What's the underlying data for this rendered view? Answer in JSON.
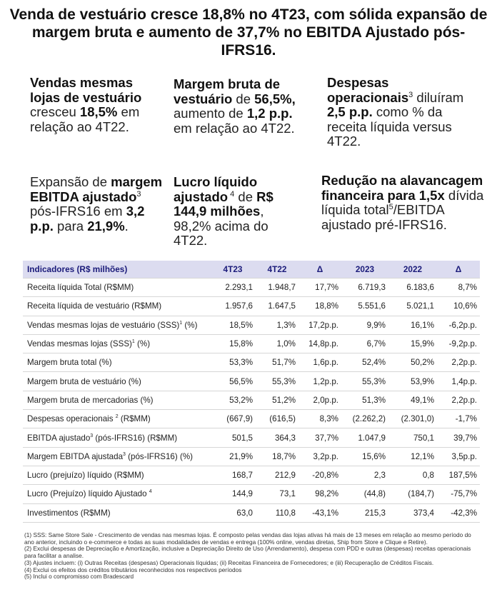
{
  "title": "Venda de vestuário cresce 18,8%  no 4T23, com sólida expansão de margem bruta e aumento de 37,7% no EBITDA Ajustado pós-IFRS16.",
  "highlights": {
    "h1": {
      "a": "Vendas mesmas lojas de vestuário",
      "b": " cresceu ",
      "c": "18,5%",
      "d": " em relação ao 4T22."
    },
    "h2": {
      "a": "Margem bruta de vestuário",
      "b": " de ",
      "c": "56,5%,",
      "d": " aumento de ",
      "e": "1,2 p.p.",
      "f": " em relação ao 4T22."
    },
    "h3": {
      "a": "Despesas operacionais",
      "sup": "3",
      "b": " diluíram ",
      "c": "2,5 p.p.",
      "d": " como % da receita líquida versus 4T22."
    },
    "h4": {
      "a": "Expansão de ",
      "b": "margem EBITDA ajustado",
      "sup": "3",
      "c": " pós-IFRS16 em ",
      "d": "3,2 p.p.",
      "e": " para ",
      "f": "21,9%",
      "g": "."
    },
    "h5": {
      "a": "Lucro líquido ajustado",
      "sup": " 4",
      "b": " de ",
      "c": "R$ 144,9 milhões",
      "d": ", 98,2% acima do 4T22."
    },
    "h6": {
      "a": "Redução na alavancagem financeira para 1,5x",
      "b": " dívida líquida total",
      "sup": "5",
      "c": "/EBITDA ajustado pré-IFRS16."
    }
  },
  "table": {
    "headers": [
      "Indicadores (R$ milhões)",
      "4T23",
      "4T22",
      "Δ",
      "2023",
      "2022",
      "Δ"
    ],
    "rows": [
      {
        "label": "Receita líquida Total (R$MM)",
        "sup": "",
        "suffix": "",
        "values": [
          "2.293,1",
          "1.948,7",
          "17,7%",
          "6.719,3",
          "6.183,6",
          "8,7%"
        ]
      },
      {
        "label": "Receita líquida de vestuário (R$MM)",
        "sup": "",
        "suffix": "",
        "values": [
          "1.957,6",
          "1.647,5",
          "18,8%",
          "5.551,6",
          "5.021,1",
          "10,6%"
        ]
      },
      {
        "label": "Vendas mesmas lojas de vestuário (SSS)",
        "sup": "1",
        "suffix": " (%)",
        "values": [
          "18,5%",
          "1,3%",
          "17,2p.p.",
          "9,9%",
          "16,1%",
          "-6,2p.p."
        ]
      },
      {
        "label": "Vendas mesmas lojas (SSS)",
        "sup": "1",
        "suffix": " (%)",
        "values": [
          "15,8%",
          "1,0%",
          "14,8p.p.",
          "6,7%",
          "15,9%",
          "-9,2p.p."
        ]
      },
      {
        "label": "Margem bruta total (%)",
        "sup": "",
        "suffix": "",
        "values": [
          "53,3%",
          "51,7%",
          "1,6p.p.",
          "52,4%",
          "50,2%",
          "2,2p.p."
        ]
      },
      {
        "label": "Margem bruta de vestuário (%)",
        "sup": "",
        "suffix": "",
        "values": [
          "56,5%",
          "55,3%",
          "1,2p.p.",
          "55,3%",
          "53,9%",
          "1,4p.p."
        ]
      },
      {
        "label": "Margem bruta de mercadorias (%)",
        "sup": "",
        "suffix": "",
        "values": [
          "53,2%",
          "51,2%",
          "2,0p.p.",
          "51,3%",
          "49,1%",
          "2,2p.p."
        ]
      },
      {
        "label": "Despesas operacionais ",
        "sup": "2",
        "suffix": " (R$MM)",
        "values": [
          "(667,9)",
          "(616,5)",
          "8,3%",
          "(2.262,2)",
          "(2.301,0)",
          "-1,7%"
        ]
      },
      {
        "label": "EBITDA ajustado",
        "sup": "3",
        "suffix": " (pós-IFRS16) (R$MM)",
        "values": [
          "501,5",
          "364,3",
          "37,7%",
          "1.047,9",
          "750,1",
          "39,7%"
        ]
      },
      {
        "label": "Margem EBITDA ajustada",
        "sup": "3",
        "suffix": "  (pós-IFRS16) (%)",
        "values": [
          "21,9%",
          "18,7%",
          "3,2p.p.",
          "15,6%",
          "12,1%",
          "3,5p.p."
        ]
      },
      {
        "label": "Lucro (prejuízo) líquido (R$MM)",
        "sup": "",
        "suffix": "",
        "values": [
          "168,7",
          "212,9",
          "-20,8%",
          "2,3",
          "0,8",
          "187,5%"
        ]
      },
      {
        "label": "Lucro (Prejuízo) líquido Ajustado ",
        "sup": "4",
        "suffix": "",
        "values": [
          "144,9",
          "73,1",
          "98,2%",
          "(44,8)",
          "(184,7)",
          "-75,7%"
        ]
      },
      {
        "label": "Investimentos (R$MM)",
        "sup": "",
        "suffix": "",
        "values": [
          "63,0",
          "110,8",
          "-43,1%",
          "215,3",
          "373,4",
          "-42,3%"
        ]
      }
    ]
  },
  "notes": [
    "(1) SSS: Same Store Sale - Crescimento de vendas nas mesmas lojas. É composto pelas vendas das lojas ativas há mais de 13 meses em relação ao mesmo período do ano anterior, incluindo o e-commerce e todas as suas modalidades de vendas e entrega (100% online, vendas diretas, Ship from Store e Clique e Retire).",
    "(2) Exclui despesas de Depreciação e Amortização, inclusive a Depreciação Direito de Uso (Arrendamento), despesa com PDD e outras (despesas) receitas operacionais para facilitar a analise.",
    "(3) Ajustes incluem: (i) Outras Receitas (despesas) Operacionais líquidas; (ii) Receitas Financeira de Fornecedores; e (iii) Recuperação de Créditos Fiscais.",
    "(4) Exclui os efeitos dos créditos tributários reconhecidos nos respectivos períodos",
    "(5) Inclui o compromisso com Bradescard"
  ]
}
